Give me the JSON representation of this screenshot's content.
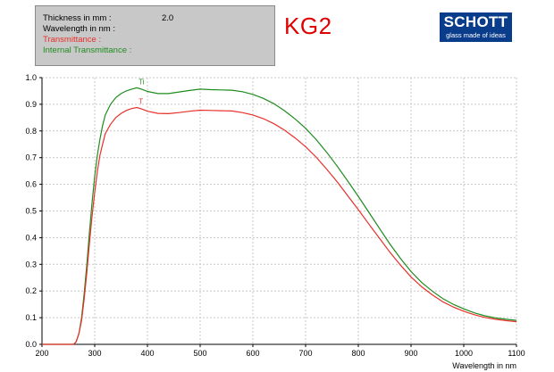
{
  "info_box": {
    "thickness_label": "Thickness in mm :",
    "thickness_value": "2.0",
    "wavelength_label": "Wavelength in nm :",
    "transmittance_label": "Transmittance :",
    "internal_transmittance_label": "Internal Transmittance :"
  },
  "filter_name": "KG2",
  "logo": {
    "word": "SCHOTT",
    "tagline": "glass made of ideas"
  },
  "colors": {
    "transmittance": "#e8302a",
    "internal_transmittance": "#1e8c1e",
    "grid": "#c8c8c8",
    "logo_bg": "#0a3c8c",
    "filter_name": "#e00000"
  },
  "chart_data": {
    "type": "line",
    "xlabel": "Wavelength in nm",
    "ylabel": "",
    "xlim": [
      200,
      1100
    ],
    "ylim": [
      0,
      1.0
    ],
    "x_ticks": [
      "200",
      "300",
      "400",
      "500",
      "600",
      "700",
      "800",
      "900",
      "1000",
      "1100"
    ],
    "y_ticks": [
      "0.0",
      "0.1",
      "0.2",
      "0.3",
      "0.4",
      "0.5",
      "0.6",
      "0.7",
      "0.8",
      "0.9",
      "1.0"
    ],
    "grid": true,
    "series": [
      {
        "name": "Ti",
        "color": "#1e8c1e",
        "x": [
          200,
          260,
          265,
          270,
          275,
          280,
          285,
          290,
          295,
          300,
          305,
          310,
          315,
          320,
          330,
          340,
          350,
          360,
          370,
          380,
          390,
          400,
          420,
          440,
          460,
          480,
          500,
          520,
          540,
          560,
          580,
          600,
          620,
          640,
          660,
          680,
          700,
          720,
          740,
          760,
          780,
          800,
          820,
          840,
          860,
          880,
          900,
          920,
          940,
          960,
          980,
          1000,
          1020,
          1040,
          1060,
          1080,
          1100
        ],
        "y": [
          0.0,
          0.0,
          0.01,
          0.04,
          0.1,
          0.19,
          0.3,
          0.42,
          0.53,
          0.63,
          0.71,
          0.77,
          0.82,
          0.86,
          0.9,
          0.925,
          0.94,
          0.95,
          0.957,
          0.962,
          0.956,
          0.948,
          0.94,
          0.94,
          0.946,
          0.952,
          0.957,
          0.955,
          0.954,
          0.953,
          0.947,
          0.937,
          0.922,
          0.902,
          0.876,
          0.845,
          0.81,
          0.768,
          0.72,
          0.668,
          0.612,
          0.555,
          0.495,
          0.435,
          0.376,
          0.322,
          0.273,
          0.232,
          0.2,
          0.172,
          0.15,
          0.133,
          0.118,
          0.107,
          0.099,
          0.094,
          0.09
        ]
      },
      {
        "name": "T",
        "color": "#e8302a",
        "x": [
          200,
          260,
          265,
          270,
          275,
          280,
          285,
          290,
          295,
          300,
          305,
          310,
          315,
          320,
          330,
          340,
          350,
          360,
          370,
          380,
          390,
          400,
          420,
          440,
          460,
          480,
          500,
          520,
          540,
          560,
          580,
          600,
          620,
          640,
          660,
          680,
          700,
          720,
          740,
          760,
          780,
          800,
          820,
          840,
          860,
          880,
          900,
          920,
          940,
          960,
          980,
          1000,
          1020,
          1040,
          1060,
          1080,
          1100
        ],
        "y": [
          0.0,
          0.0,
          0.01,
          0.04,
          0.09,
          0.17,
          0.27,
          0.38,
          0.48,
          0.57,
          0.65,
          0.71,
          0.75,
          0.79,
          0.825,
          0.85,
          0.866,
          0.877,
          0.884,
          0.888,
          0.882,
          0.874,
          0.866,
          0.865,
          0.869,
          0.874,
          0.878,
          0.877,
          0.876,
          0.875,
          0.869,
          0.86,
          0.846,
          0.827,
          0.803,
          0.774,
          0.741,
          0.702,
          0.657,
          0.609,
          0.557,
          0.505,
          0.451,
          0.398,
          0.345,
          0.297,
          0.253,
          0.216,
          0.186,
          0.16,
          0.14,
          0.124,
          0.111,
          0.101,
          0.094,
          0.089,
          0.085
        ]
      }
    ]
  }
}
